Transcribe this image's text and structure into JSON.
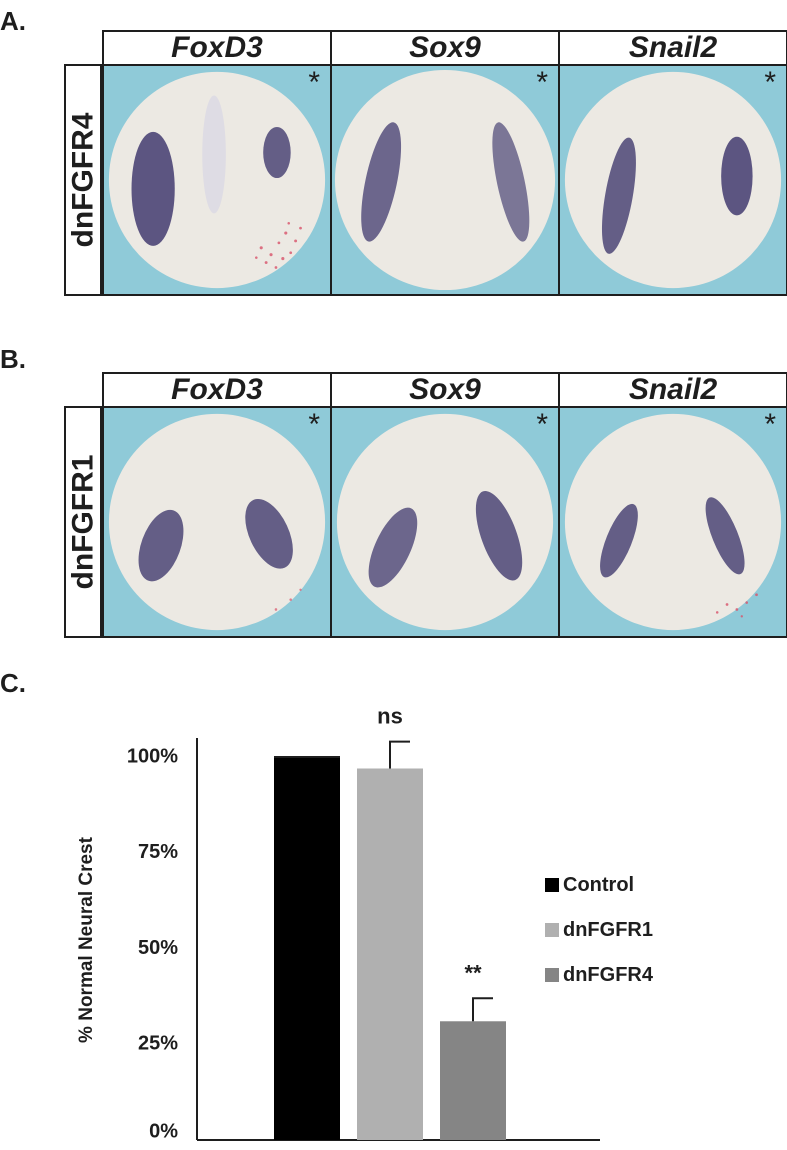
{
  "panels": {
    "a": {
      "letter": "A.",
      "row_label": "dnFGFR4",
      "columns": [
        "FoxD3",
        "Sox9",
        "Snail2"
      ],
      "asterisk": "*"
    },
    "b": {
      "letter": "B.",
      "row_label": "dnFGFR1",
      "columns": [
        "FoxD3",
        "Sox9",
        "Snail2"
      ],
      "asterisk": "*"
    },
    "c": {
      "letter": "C."
    }
  },
  "colors": {
    "background_blue": "#8fcad8",
    "embryo": "#ece9e3",
    "stain": "#4c4575",
    "lineage_tracer": "#d9536a",
    "control": "#000000",
    "dnFGFR1": "#b0b0b0",
    "dnFGFR4": "#858585"
  },
  "chart_data": {
    "type": "bar",
    "ylabel": "% Normal Neural Crest",
    "xlabel": "",
    "ylim": [
      0,
      100
    ],
    "yticks": [
      0,
      25,
      50,
      75,
      100
    ],
    "ytick_labels": [
      "0%",
      "25%",
      "50%",
      "75%",
      "100%"
    ],
    "categories": [
      "Control",
      "dnFGFR1",
      "dnFGFR4"
    ],
    "values": [
      100,
      97,
      31
    ],
    "errors": [
      0,
      7,
      6
    ],
    "annotations": [
      "",
      "ns",
      "**"
    ],
    "legend": [
      "Control",
      "dnFGFR1",
      "dnFGFR4"
    ],
    "legend_position": "right"
  }
}
